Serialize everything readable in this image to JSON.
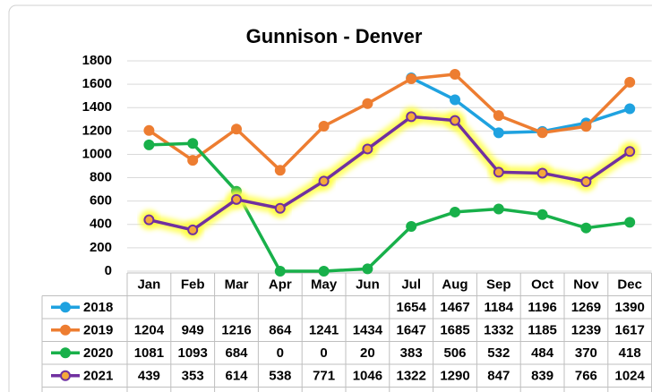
{
  "chart_data": {
    "type": "line",
    "title": "Gunnison - Denver",
    "categories": [
      "Jan",
      "Feb",
      "Mar",
      "Apr",
      "May",
      "Jun",
      "Jul",
      "Aug",
      "Sep",
      "Oct",
      "Nov",
      "Dec"
    ],
    "series": [
      {
        "name": "2018",
        "color": "#1fa2e0",
        "values": [
          null,
          null,
          null,
          null,
          null,
          null,
          1654,
          1467,
          1184,
          1196,
          1269,
          1390
        ]
      },
      {
        "name": "2019",
        "color": "#ed7d31",
        "values": [
          1204,
          949,
          1216,
          864,
          1241,
          1434,
          1647,
          1685,
          1332,
          1185,
          1239,
          1617
        ]
      },
      {
        "name": "2020",
        "color": "#18b04a",
        "values": [
          1081,
          1093,
          684,
          0,
          0,
          20,
          383,
          506,
          532,
          484,
          370,
          418
        ]
      },
      {
        "name": "2021",
        "color": "#7030a0",
        "marker_fill": "#f5a93a",
        "glow": "#ffff40",
        "values": [
          439,
          353,
          614,
          538,
          771,
          1046,
          1322,
          1290,
          847,
          839,
          766,
          1024
        ]
      }
    ],
    "ylim": [
      0,
      1800
    ],
    "yticks": [
      0,
      200,
      400,
      600,
      800,
      1000,
      1200,
      1400,
      1600,
      1800
    ],
    "grid": true,
    "data_table": true
  }
}
